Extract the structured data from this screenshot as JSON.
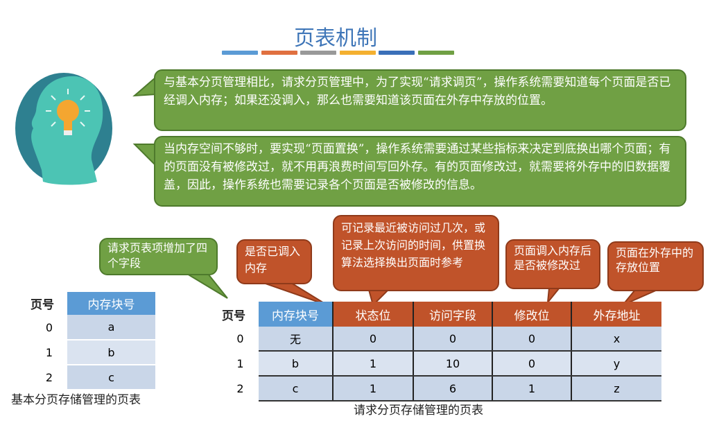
{
  "title": "页表机制",
  "title_bar_colors": [
    "#5b9bd5",
    "#e07040",
    "#999999",
    "#f4b030",
    "#3a6fb8",
    "#70a044"
  ],
  "bubbles": {
    "intro1": "与基本分页管理相比，请求分页管理中，为了实现“请求调页”，操作系统需要知道每个页面是否已经调入内存；如果还没调入，那么也需要知道该页面在外存中存放的位置。",
    "intro2": "当内存空间不够时，要实现“页面置换”，操作系统需要通过某些指标来决定到底换出哪个页面；有的页面没有被修改过，就不用再浪费时间写回外存。有的页面修改过，就需要将外存中的旧数据覆盖，因此，操作系统也需要记录各个页面是否被修改的信息。",
    "fields_added": "请求页表项增加了四个字段",
    "status_bit": "是否已调入内存",
    "access_field": "可记录最近被访问过几次，或记录上次访问的时间，供置换算法选择换出页面时参考",
    "modify_bit": "页面调入内存后是否被修改过",
    "disk_addr": "页面在外存中的存放位置"
  },
  "basic_table": {
    "page_label": "页号",
    "header": "内存块号",
    "rows": [
      [
        "0",
        "a"
      ],
      [
        "1",
        "b"
      ],
      [
        "2",
        "c"
      ]
    ],
    "caption": "基本分页存储管理的页表"
  },
  "request_table": {
    "page_label": "页号",
    "headers": [
      "内存块号",
      "状态位",
      "访问字段",
      "修改位",
      "外存地址"
    ],
    "rows": [
      [
        "0",
        "无",
        "0",
        "0",
        "0",
        "x"
      ],
      [
        "1",
        "b",
        "1",
        "10",
        "0",
        "y"
      ],
      [
        "2",
        "c",
        "1",
        "6",
        "1",
        "z"
      ]
    ],
    "caption": "请求分页存储管理的页表"
  }
}
